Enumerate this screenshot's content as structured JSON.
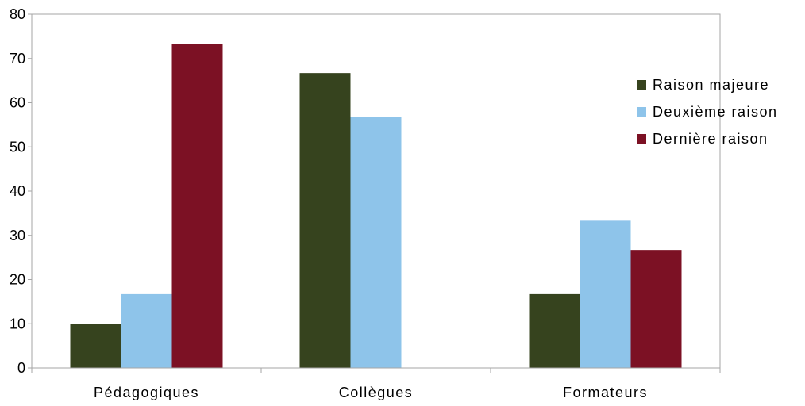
{
  "chart_data": {
    "type": "bar",
    "title": "",
    "xlabel": "",
    "ylabel": "",
    "categories": [
      "Pédagogiques",
      "Collègues",
      "Formateurs"
    ],
    "series": [
      {
        "name": "Raison majeure",
        "color": "#36431e",
        "values": [
          10,
          66.7,
          16.7
        ]
      },
      {
        "name": "Deuxième raison",
        "color": "#8ec4ea",
        "values": [
          16.7,
          56.7,
          33.3
        ]
      },
      {
        "name": "Dernière raison",
        "color": "#7c1124",
        "values": [
          73.3,
          0,
          26.7
        ]
      }
    ],
    "ylim": [
      0,
      80
    ],
    "yticks": [
      0,
      10,
      20,
      30,
      40,
      50,
      60,
      70,
      80
    ],
    "grid": false,
    "legend_position": "right"
  }
}
